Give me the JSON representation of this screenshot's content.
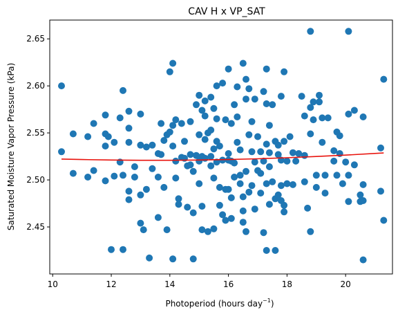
{
  "chart_data": {
    "type": "scatter",
    "title": "CAV H x VP_SAT",
    "xlabel": "Photoperiod (hours day",
    "xlabel_sup": "−1",
    "xlabel_close": ")",
    "ylabel": "Saturated Moisture Vapor Pressure (kPa)",
    "xlim": [
      9.9,
      21.6
    ],
    "ylim": [
      2.4,
      2.67
    ],
    "xticks": [
      10,
      12,
      14,
      16,
      18,
      20
    ],
    "yticks": [
      2.45,
      2.5,
      2.55,
      2.6,
      2.65
    ],
    "ytick_labels": [
      "2.45",
      "2.50",
      "2.55",
      "2.60",
      "2.65"
    ],
    "grid": false,
    "colors": {
      "points": "#1f77b4",
      "trend": "#e8120c"
    },
    "series": [
      {
        "type": "scatter",
        "points": [
          [
            10.3,
            2.6
          ],
          [
            10.3,
            2.53
          ],
          [
            10.7,
            2.549
          ],
          [
            10.7,
            2.507
          ],
          [
            11.2,
            2.546
          ],
          [
            11.2,
            2.503
          ],
          [
            11.4,
            2.56
          ],
          [
            11.4,
            2.51
          ],
          [
            11.8,
            2.569
          ],
          [
            11.8,
            2.549
          ],
          [
            11.8,
            2.536
          ],
          [
            11.8,
            2.499
          ],
          [
            11.9,
            2.546
          ],
          [
            12.0,
            2.426
          ],
          [
            12.1,
            2.54
          ],
          [
            12.1,
            2.504
          ],
          [
            12.3,
            2.566
          ],
          [
            12.3,
            2.519
          ],
          [
            12.4,
            2.595
          ],
          [
            12.4,
            2.505
          ],
          [
            12.4,
            2.426
          ],
          [
            12.6,
            2.573
          ],
          [
            12.6,
            2.555
          ],
          [
            12.6,
            2.54
          ],
          [
            12.6,
            2.488
          ],
          [
            12.6,
            2.479
          ],
          [
            12.8,
            2.514
          ],
          [
            12.8,
            2.503
          ],
          [
            13.0,
            2.57
          ],
          [
            13.0,
            2.537
          ],
          [
            13.0,
            2.454
          ],
          [
            13.0,
            2.484
          ],
          [
            13.1,
            2.447
          ],
          [
            13.2,
            2.535
          ],
          [
            13.2,
            2.49
          ],
          [
            13.3,
            2.417
          ],
          [
            13.4,
            2.537
          ],
          [
            13.4,
            2.512
          ],
          [
            13.6,
            2.528
          ],
          [
            13.6,
            2.503
          ],
          [
            13.6,
            2.46
          ],
          [
            13.7,
            2.56
          ],
          [
            13.7,
            2.527
          ],
          [
            13.8,
            2.542
          ],
          [
            13.8,
            2.492
          ],
          [
            13.9,
            2.548
          ],
          [
            13.9,
            2.447
          ],
          [
            14.0,
            2.615
          ],
          [
            14.0,
            2.551
          ],
          [
            14.1,
            2.624
          ],
          [
            14.1,
            2.558
          ],
          [
            14.1,
            2.536
          ],
          [
            14.1,
            2.416
          ],
          [
            14.2,
            2.564
          ],
          [
            14.2,
            2.52
          ],
          [
            14.2,
            2.502
          ],
          [
            14.3,
            2.48
          ],
          [
            14.3,
            2.474
          ],
          [
            14.4,
            2.56
          ],
          [
            14.4,
            2.524
          ],
          [
            14.5,
            2.523
          ],
          [
            14.5,
            2.541
          ],
          [
            14.6,
            2.471
          ],
          [
            14.6,
            2.515
          ],
          [
            14.7,
            2.562
          ],
          [
            14.7,
            2.527
          ],
          [
            14.7,
            2.516
          ],
          [
            14.8,
            2.509
          ],
          [
            14.8,
            2.465
          ],
          [
            14.8,
            2.416
          ],
          [
            14.9,
            2.58
          ],
          [
            14.9,
            2.526
          ],
          [
            15.0,
            2.59
          ],
          [
            15.0,
            2.548
          ],
          [
            15.0,
            2.52
          ],
          [
            15.0,
            2.496
          ],
          [
            15.1,
            2.574
          ],
          [
            15.1,
            2.525
          ],
          [
            15.1,
            2.447
          ],
          [
            15.1,
            2.472
          ],
          [
            15.2,
            2.584
          ],
          [
            15.2,
            2.568
          ],
          [
            15.2,
            2.543
          ],
          [
            15.2,
            2.523
          ],
          [
            15.3,
            2.55
          ],
          [
            15.3,
            2.445
          ],
          [
            15.4,
            2.588
          ],
          [
            15.4,
            2.553
          ],
          [
            15.4,
            2.525
          ],
          [
            15.4,
            2.515
          ],
          [
            15.5,
            2.576
          ],
          [
            15.5,
            2.533
          ],
          [
            15.5,
            2.502
          ],
          [
            15.5,
            2.448
          ],
          [
            15.6,
            2.6
          ],
          [
            15.6,
            2.565
          ],
          [
            15.6,
            2.541
          ],
          [
            15.6,
            2.519
          ],
          [
            15.7,
            2.492
          ],
          [
            15.7,
            2.473
          ],
          [
            15.7,
            2.536
          ],
          [
            15.8,
            2.603
          ],
          [
            15.8,
            2.521
          ],
          [
            15.8,
            2.463
          ],
          [
            15.9,
            2.49
          ],
          [
            15.9,
            2.457
          ],
          [
            15.9,
            2.564
          ],
          [
            16.0,
            2.618
          ],
          [
            16.0,
            2.528
          ],
          [
            16.0,
            2.49
          ],
          [
            16.0,
            2.521
          ],
          [
            16.1,
            2.56
          ],
          [
            16.1,
            2.52
          ],
          [
            16.1,
            2.459
          ],
          [
            16.1,
            2.481
          ],
          [
            16.2,
            2.58
          ],
          [
            16.2,
            2.518
          ],
          [
            16.2,
            2.503
          ],
          [
            16.3,
            2.599
          ],
          [
            16.3,
            2.567
          ],
          [
            16.3,
            2.54
          ],
          [
            16.4,
            2.532
          ],
          [
            16.4,
            2.505
          ],
          [
            16.4,
            2.496
          ],
          [
            16.5,
            2.624
          ],
          [
            16.5,
            2.482
          ],
          [
            16.5,
            2.467
          ],
          [
            16.5,
            2.455
          ],
          [
            16.6,
            2.607
          ],
          [
            16.6,
            2.586
          ],
          [
            16.6,
            2.509
          ],
          [
            16.6,
            2.445
          ],
          [
            16.7,
            2.597
          ],
          [
            16.7,
            2.548
          ],
          [
            16.7,
            2.487
          ],
          [
            16.8,
            2.562
          ],
          [
            16.8,
            2.53
          ],
          [
            16.8,
            2.494
          ],
          [
            16.9,
            2.519
          ],
          [
            16.9,
            2.469
          ],
          [
            16.9,
            2.586
          ],
          [
            17.0,
            2.546
          ],
          [
            17.0,
            2.51
          ],
          [
            17.1,
            2.53
          ],
          [
            17.1,
            2.486
          ],
          [
            17.1,
            2.507
          ],
          [
            17.2,
            2.594
          ],
          [
            17.2,
            2.52
          ],
          [
            17.2,
            2.444
          ],
          [
            17.3,
            2.618
          ],
          [
            17.3,
            2.581
          ],
          [
            17.3,
            2.538
          ],
          [
            17.3,
            2.496
          ],
          [
            17.3,
            2.425
          ],
          [
            17.4,
            2.558
          ],
          [
            17.4,
            2.529
          ],
          [
            17.4,
            2.514
          ],
          [
            17.4,
            2.474
          ],
          [
            17.5,
            2.58
          ],
          [
            17.5,
            2.498
          ],
          [
            17.6,
            2.541
          ],
          [
            17.6,
            2.48
          ],
          [
            17.6,
            2.425
          ],
          [
            17.7,
            2.537
          ],
          [
            17.7,
            2.527
          ],
          [
            17.7,
            2.484
          ],
          [
            17.8,
            2.589
          ],
          [
            17.8,
            2.521
          ],
          [
            17.8,
            2.494
          ],
          [
            17.8,
            2.478
          ],
          [
            17.9,
            2.615
          ],
          [
            17.9,
            2.541
          ],
          [
            17.9,
            2.473
          ],
          [
            17.9,
            2.466
          ],
          [
            18.0,
            2.52
          ],
          [
            18.0,
            2.496
          ],
          [
            18.1,
            2.546
          ],
          [
            18.2,
            2.529
          ],
          [
            18.2,
            2.495
          ],
          [
            18.3,
            2.52
          ],
          [
            18.4,
            2.528
          ],
          [
            18.5,
            2.589
          ],
          [
            18.6,
            2.568
          ],
          [
            18.6,
            2.526
          ],
          [
            18.6,
            2.498
          ],
          [
            18.7,
            2.47
          ],
          [
            18.8,
            2.658
          ],
          [
            18.8,
            2.577
          ],
          [
            18.8,
            2.549
          ],
          [
            18.8,
            2.445
          ],
          [
            18.9,
            2.583
          ],
          [
            18.9,
            2.564
          ],
          [
            19.0,
            2.505
          ],
          [
            19.0,
            2.492
          ],
          [
            19.1,
            2.59
          ],
          [
            19.1,
            2.583
          ],
          [
            19.2,
            2.566
          ],
          [
            19.2,
            2.54
          ],
          [
            19.3,
            2.486
          ],
          [
            19.3,
            2.505
          ],
          [
            19.4,
            2.566
          ],
          [
            19.6,
            2.531
          ],
          [
            19.6,
            2.52
          ],
          [
            19.7,
            2.551
          ],
          [
            19.7,
            2.505
          ],
          [
            19.8,
            2.547
          ],
          [
            19.8,
            2.528
          ],
          [
            19.9,
            2.496
          ],
          [
            20.0,
            2.519
          ],
          [
            20.1,
            2.658
          ],
          [
            20.1,
            2.57
          ],
          [
            20.1,
            2.505
          ],
          [
            20.1,
            2.477
          ],
          [
            20.3,
            2.574
          ],
          [
            20.3,
            2.516
          ],
          [
            20.5,
            2.484
          ],
          [
            20.5,
            2.477
          ],
          [
            20.6,
            2.567
          ],
          [
            20.6,
            2.495
          ],
          [
            20.6,
            2.478
          ],
          [
            20.6,
            2.415
          ],
          [
            21.2,
            2.534
          ],
          [
            21.2,
            2.488
          ],
          [
            21.3,
            2.607
          ],
          [
            21.3,
            2.457
          ]
        ]
      },
      {
        "type": "line",
        "x": [
          10.3,
          11.0,
          12.0,
          13.0,
          14.0,
          15.0,
          16.0,
          17.0,
          18.0,
          19.0,
          20.0,
          21.3
        ],
        "y": [
          2.5222,
          2.5217,
          2.5212,
          2.5209,
          2.5209,
          2.5212,
          2.5217,
          2.5225,
          2.5236,
          2.5249,
          2.5264,
          2.5287
        ]
      }
    ]
  }
}
